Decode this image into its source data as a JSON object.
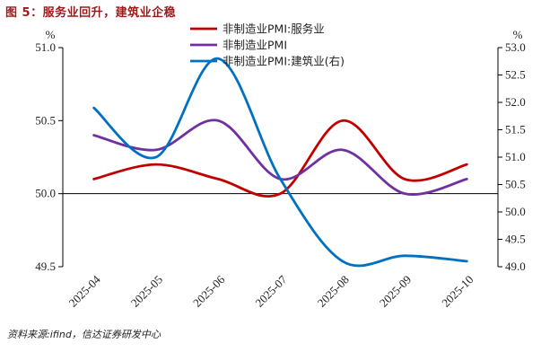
{
  "figure": {
    "title": "图 5：服务业回升，建筑业企稳",
    "source": "资料来源:ifind，信达证券研发中心"
  },
  "chart_data": {
    "type": "line",
    "x": [
      "2025-04",
      "2025-05",
      "2025-06",
      "2025-07",
      "2025-08",
      "2025-09",
      "2025-10"
    ],
    "series": [
      {
        "name": "非制造业PMI:服务业",
        "axis": "left",
        "color": "#c00000",
        "values": [
          50.1,
          50.2,
          50.1,
          50.0,
          50.5,
          50.1,
          50.2
        ]
      },
      {
        "name": "非制造业PMI",
        "axis": "left",
        "color": "#7030a0",
        "values": [
          50.4,
          50.3,
          50.5,
          50.1,
          50.3,
          50.0,
          50.1
        ]
      },
      {
        "name": "非制造业PMI:建筑业(右)",
        "axis": "right",
        "color": "#0070c0",
        "values": [
          51.9,
          51.0,
          52.8,
          50.6,
          49.1,
          49.2,
          49.1
        ]
      }
    ],
    "y_left": {
      "unit": "%",
      "min": 49.5,
      "max": 51.0,
      "ticks": [
        "49.5",
        "50.0",
        "50.5",
        "51.0"
      ],
      "ref_line": 50.0
    },
    "y_right": {
      "unit": "%",
      "min": 49.0,
      "max": 53.0,
      "ticks": [
        "49.0",
        "49.5",
        "50.0",
        "50.5",
        "51.0",
        "51.5",
        "52.0",
        "52.5",
        "53.0"
      ]
    },
    "legend_position": "top-center",
    "grid": false
  }
}
